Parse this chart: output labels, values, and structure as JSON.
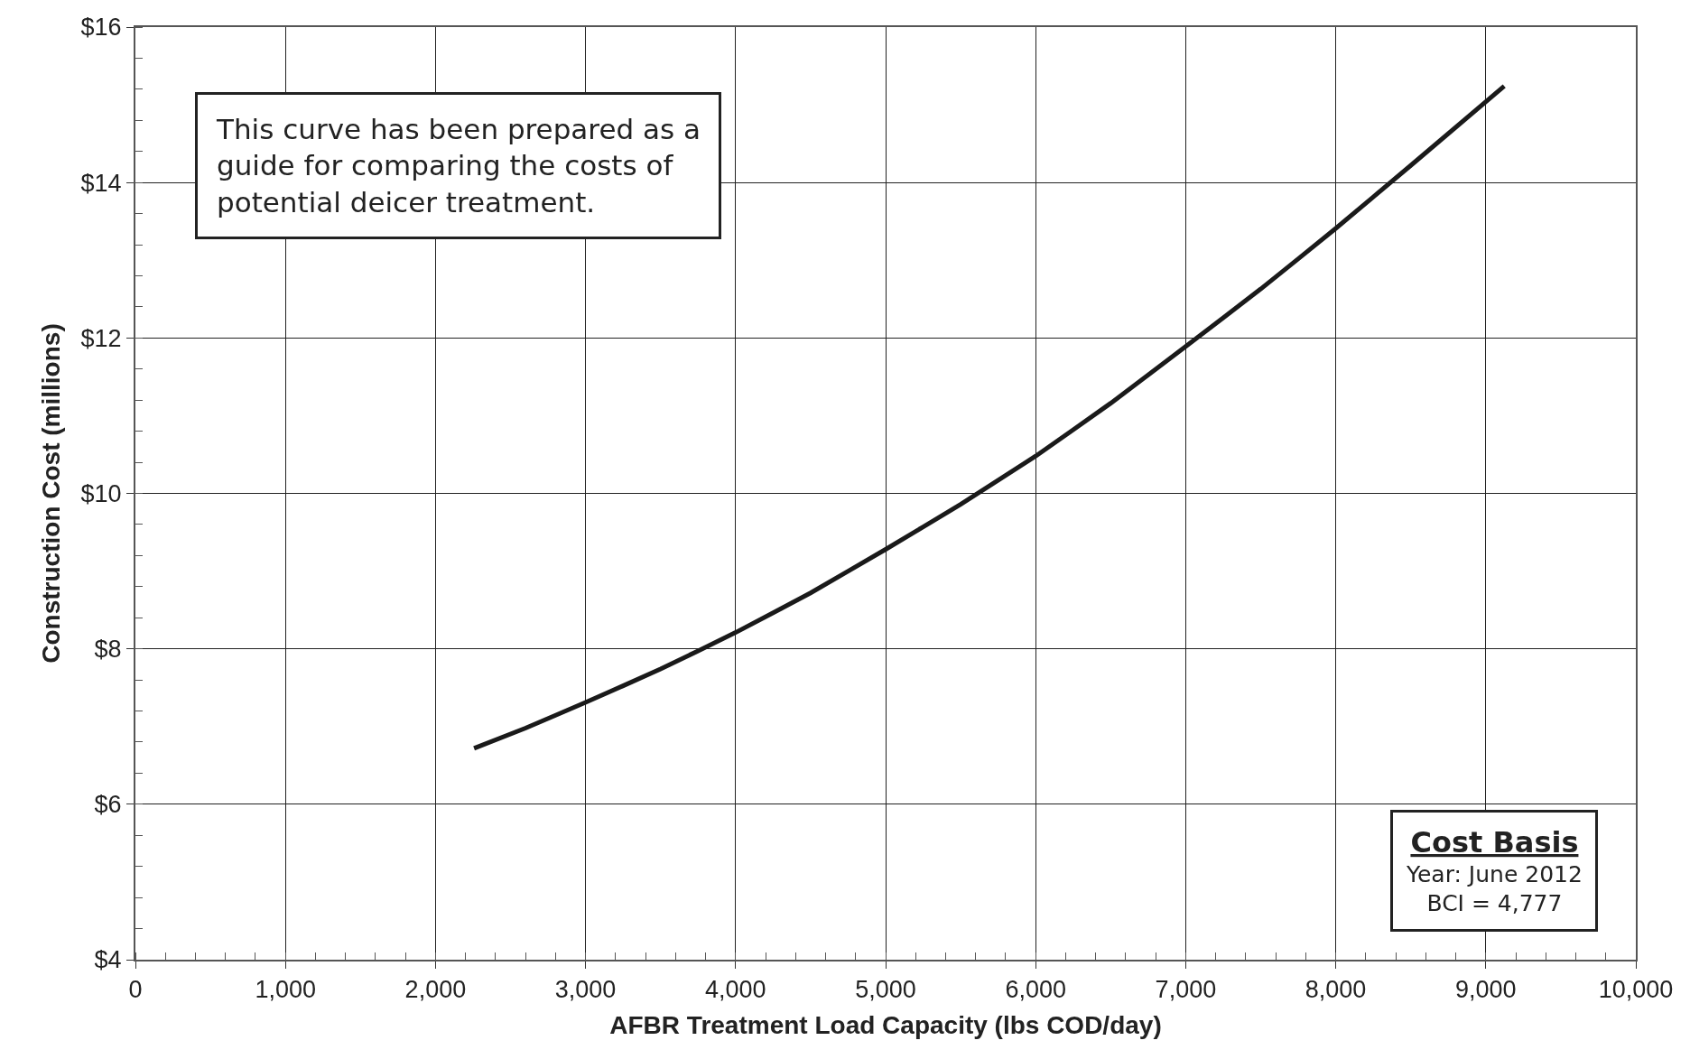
{
  "chart_data": {
    "type": "line",
    "xlabel": "AFBR Treatment Load Capacity (lbs COD/day)",
    "ylabel": "Construction Cost (millions)",
    "x": [
      2257,
      2600,
      3000,
      3500,
      4000,
      4500,
      5000,
      5500,
      6000,
      6500,
      7000,
      7500,
      8000,
      8500,
      9123
    ],
    "series": [
      {
        "color": "#1a1a1a",
        "values": [
          6.72,
          6.98,
          7.31,
          7.74,
          8.21,
          8.72,
          9.28,
          9.86,
          10.48,
          11.16,
          11.89,
          12.63,
          13.41,
          14.22,
          15.24
        ]
      }
    ],
    "xlim": [
      0,
      10000
    ],
    "xticks": [
      {
        "value": 0,
        "label": "0"
      },
      {
        "value": 1000,
        "label": "1,000"
      },
      {
        "value": 2000,
        "label": "2,000"
      },
      {
        "value": 3000,
        "label": "3,000"
      },
      {
        "value": 4000,
        "label": "4,000"
      },
      {
        "value": 5000,
        "label": "5,000"
      },
      {
        "value": 6000,
        "label": "6,000"
      },
      {
        "value": 7000,
        "label": "7,000"
      },
      {
        "value": 8000,
        "label": "8,000"
      },
      {
        "value": 9000,
        "label": "9,000"
      },
      {
        "value": 10000,
        "label": "10,000"
      }
    ],
    "ylim": [
      4,
      16
    ],
    "yticks": [
      {
        "value": 4,
        "label": "$4"
      },
      {
        "value": 6,
        "label": "$6"
      },
      {
        "value": 8,
        "label": "$8"
      },
      {
        "value": 10,
        "label": "$10"
      },
      {
        "value": 12,
        "label": "$12"
      },
      {
        "value": 14,
        "label": "$14"
      },
      {
        "value": 16,
        "label": "$16"
      }
    ],
    "grid": true,
    "marker": "none",
    "line_style": "solid",
    "annotations": [
      "This curve has been prepared as a\nguide for comparing the costs of\npotential deicer treatment.",
      "Cost Basis\nYear: June 2012\nBCI = 4,777"
    ]
  }
}
